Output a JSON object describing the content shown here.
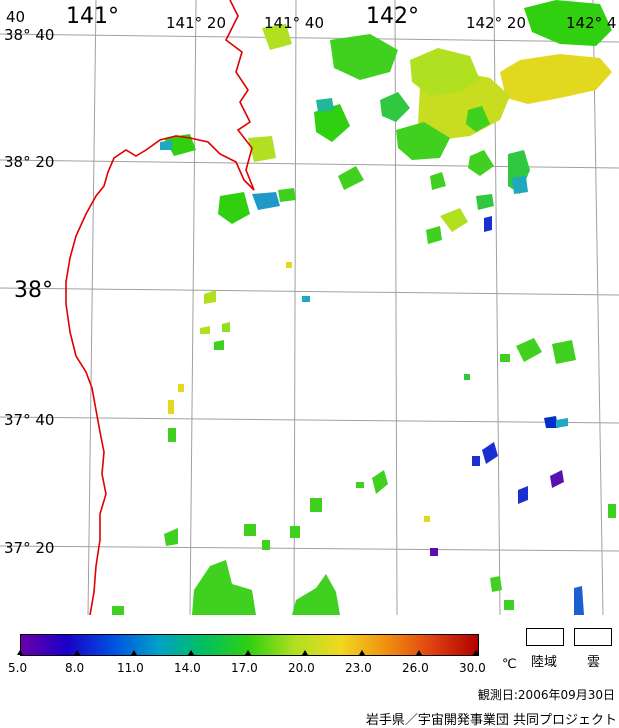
{
  "map": {
    "lon_labels": [
      "141°",
      "141° 20",
      "141° 40",
      "142°",
      "142° 20",
      "142° 4"
    ],
    "lat_labels": [
      "38° 40",
      "38° 20",
      "38°",
      "37° 40",
      "37° 20"
    ],
    "corner_label": "40",
    "coastline_color": "#e00000",
    "grid_color": "#a0a0a0"
  },
  "legend": {
    "colorbar_stops": [
      "#6a00a8",
      "#1a00c8",
      "#0050e0",
      "#00a0c8",
      "#00c060",
      "#30d010",
      "#b0e020",
      "#f0d820",
      "#f09010",
      "#e04010",
      "#b00000"
    ],
    "ticks": [
      "5.0",
      "8.0",
      "11.0",
      "14.0",
      "17.0",
      "20.0",
      "23.0",
      "26.0",
      "30.0"
    ],
    "unit": "℃",
    "land_label": "陸域",
    "cloud_label": "雲"
  },
  "observation_date": "観測日:2006年09月30日",
  "credit": "岩手県／宇宙開発事業団 共同プロジェクト"
}
